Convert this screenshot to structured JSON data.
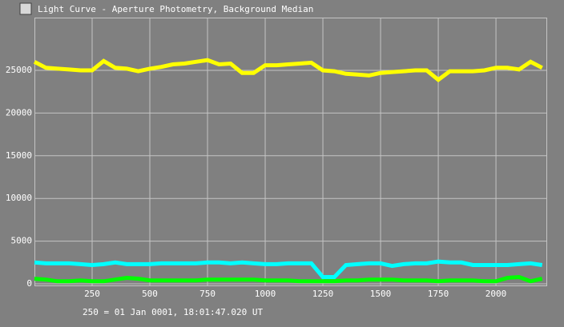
{
  "chart_data": {
    "type": "line",
    "title": "Light Curve - Aperture Photometry, Background Median",
    "footer": "250 = 01 Jan 0001, 18:01:47.020 UT",
    "x": [
      0,
      50,
      100,
      150,
      200,
      250,
      300,
      350,
      400,
      450,
      500,
      550,
      600,
      650,
      700,
      750,
      800,
      850,
      900,
      950,
      1000,
      1050,
      1100,
      1150,
      1200,
      1250,
      1300,
      1350,
      1400,
      1450,
      1500,
      1550,
      1600,
      1650,
      1700,
      1750,
      1800,
      1850,
      1900,
      1950,
      2000,
      2050,
      2100,
      2150,
      2200
    ],
    "series": [
      {
        "color": "#ffff00",
        "values": [
          26000,
          25300,
          25200,
          25100,
          25000,
          25000,
          26100,
          25300,
          25200,
          24900,
          25200,
          25400,
          25700,
          25800,
          26000,
          26200,
          25700,
          25800,
          24700,
          24700,
          25600,
          25600,
          25700,
          25800,
          25900,
          25000,
          24900,
          24600,
          24500,
          24400,
          24700,
          24800,
          24900,
          25000,
          25000,
          23900,
          24900,
          24900,
          24900,
          25000,
          25300,
          25300,
          25100,
          26000,
          25300
        ]
      },
      {
        "color": "#00ffff",
        "values": [
          2500,
          2400,
          2400,
          2400,
          2300,
          2200,
          2300,
          2500,
          2300,
          2300,
          2300,
          2400,
          2400,
          2400,
          2400,
          2500,
          2500,
          2400,
          2500,
          2400,
          2300,
          2300,
          2400,
          2400,
          2400,
          800,
          800,
          2200,
          2300,
          2400,
          2400,
          2100,
          2300,
          2400,
          2400,
          2600,
          2500,
          2500,
          2200,
          2200,
          2200,
          2200,
          2300,
          2400,
          2200
        ]
      },
      {
        "color": "#00ff00",
        "values": [
          600,
          500,
          300,
          300,
          400,
          300,
          300,
          500,
          700,
          600,
          400,
          400,
          400,
          400,
          400,
          500,
          500,
          500,
          500,
          500,
          400,
          400,
          400,
          300,
          300,
          300,
          300,
          400,
          400,
          500,
          500,
          500,
          400,
          400,
          400,
          300,
          400,
          400,
          400,
          300,
          300,
          700,
          800,
          300,
          600
        ]
      }
    ],
    "xlim": [
      0,
      2222
    ],
    "ylim": [
      -280,
      31180
    ],
    "xticks": [
      250,
      500,
      750,
      1000,
      1250,
      1500,
      1750,
      2000
    ],
    "yticks": [
      0,
      5000,
      10000,
      15000,
      20000,
      25000
    ],
    "grid": true
  }
}
